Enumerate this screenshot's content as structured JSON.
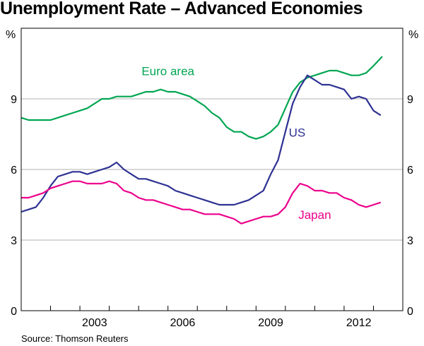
{
  "chart_data": {
    "type": "line",
    "title": "Unemployment Rate – Advanced Economies",
    "ylabel_left": "%",
    "ylabel_right": "%",
    "ylim": [
      0,
      12
    ],
    "yticks": [
      0,
      3,
      6,
      9
    ],
    "xlim": [
      2000.0,
      2013.0
    ],
    "xticks": [
      2003,
      2006,
      2009,
      2012
    ],
    "grid": true,
    "source": "Source: Thomson Reuters",
    "series": [
      {
        "name": "Euro area",
        "color": "#00a651",
        "points": [
          [
            2000.0,
            8.2
          ],
          [
            2000.25,
            8.1
          ],
          [
            2000.5,
            8.1
          ],
          [
            2000.75,
            8.1
          ],
          [
            2001.0,
            8.1
          ],
          [
            2001.25,
            8.2
          ],
          [
            2001.5,
            8.3
          ],
          [
            2001.75,
            8.4
          ],
          [
            2002.0,
            8.5
          ],
          [
            2002.25,
            8.6
          ],
          [
            2002.5,
            8.8
          ],
          [
            2002.75,
            9.0
          ],
          [
            2003.0,
            9.0
          ],
          [
            2003.25,
            9.1
          ],
          [
            2003.5,
            9.1
          ],
          [
            2003.75,
            9.1
          ],
          [
            2004.0,
            9.2
          ],
          [
            2004.25,
            9.3
          ],
          [
            2004.5,
            9.3
          ],
          [
            2004.75,
            9.4
          ],
          [
            2005.0,
            9.3
          ],
          [
            2005.25,
            9.3
          ],
          [
            2005.5,
            9.2
          ],
          [
            2005.75,
            9.1
          ],
          [
            2006.0,
            8.9
          ],
          [
            2006.25,
            8.7
          ],
          [
            2006.5,
            8.4
          ],
          [
            2006.75,
            8.2
          ],
          [
            2007.0,
            7.8
          ],
          [
            2007.25,
            7.6
          ],
          [
            2007.5,
            7.6
          ],
          [
            2007.75,
            7.4
          ],
          [
            2008.0,
            7.3
          ],
          [
            2008.25,
            7.4
          ],
          [
            2008.5,
            7.6
          ],
          [
            2008.75,
            7.9
          ],
          [
            2009.0,
            8.6
          ],
          [
            2009.25,
            9.3
          ],
          [
            2009.5,
            9.7
          ],
          [
            2009.75,
            9.9
          ],
          [
            2010.0,
            10.0
          ],
          [
            2010.25,
            10.1
          ],
          [
            2010.5,
            10.2
          ],
          [
            2010.75,
            10.2
          ],
          [
            2011.0,
            10.1
          ],
          [
            2011.25,
            10.0
          ],
          [
            2011.5,
            10.0
          ],
          [
            2011.75,
            10.1
          ],
          [
            2012.0,
            10.4
          ],
          [
            2012.3,
            10.8
          ]
        ]
      },
      {
        "name": "US",
        "color": "#2e3192",
        "points": [
          [
            2000.0,
            4.2
          ],
          [
            2000.25,
            4.3
          ],
          [
            2000.5,
            4.4
          ],
          [
            2000.75,
            4.8
          ],
          [
            2001.0,
            5.3
          ],
          [
            2001.25,
            5.7
          ],
          [
            2001.5,
            5.8
          ],
          [
            2001.75,
            5.9
          ],
          [
            2002.0,
            5.9
          ],
          [
            2002.25,
            5.8
          ],
          [
            2002.5,
            5.9
          ],
          [
            2002.75,
            6.0
          ],
          [
            2003.0,
            6.1
          ],
          [
            2003.25,
            6.3
          ],
          [
            2003.5,
            6.0
          ],
          [
            2003.75,
            5.8
          ],
          [
            2004.0,
            5.6
          ],
          [
            2004.25,
            5.6
          ],
          [
            2004.5,
            5.5
          ],
          [
            2004.75,
            5.4
          ],
          [
            2005.0,
            5.3
          ],
          [
            2005.25,
            5.1
          ],
          [
            2005.5,
            5.0
          ],
          [
            2005.75,
            4.9
          ],
          [
            2006.0,
            4.8
          ],
          [
            2006.25,
            4.7
          ],
          [
            2006.5,
            4.6
          ],
          [
            2006.75,
            4.5
          ],
          [
            2007.0,
            4.5
          ],
          [
            2007.25,
            4.5
          ],
          [
            2007.5,
            4.6
          ],
          [
            2007.75,
            4.7
          ],
          [
            2008.0,
            4.9
          ],
          [
            2008.25,
            5.1
          ],
          [
            2008.5,
            5.8
          ],
          [
            2008.75,
            6.4
          ],
          [
            2009.0,
            7.6
          ],
          [
            2009.25,
            8.8
          ],
          [
            2009.5,
            9.5
          ],
          [
            2009.75,
            10.0
          ],
          [
            2010.0,
            9.8
          ],
          [
            2010.25,
            9.6
          ],
          [
            2010.5,
            9.6
          ],
          [
            2010.75,
            9.5
          ],
          [
            2011.0,
            9.4
          ],
          [
            2011.25,
            9.0
          ],
          [
            2011.5,
            9.1
          ],
          [
            2011.75,
            9.0
          ],
          [
            2012.0,
            8.5
          ],
          [
            2012.25,
            8.3
          ]
        ]
      },
      {
        "name": "Japan",
        "color": "#ec008c",
        "points": [
          [
            2000.0,
            4.8
          ],
          [
            2000.25,
            4.8
          ],
          [
            2000.5,
            4.9
          ],
          [
            2000.75,
            5.0
          ],
          [
            2001.0,
            5.2
          ],
          [
            2001.25,
            5.3
          ],
          [
            2001.5,
            5.4
          ],
          [
            2001.75,
            5.5
          ],
          [
            2002.0,
            5.5
          ],
          [
            2002.25,
            5.4
          ],
          [
            2002.5,
            5.4
          ],
          [
            2002.75,
            5.4
          ],
          [
            2003.0,
            5.5
          ],
          [
            2003.25,
            5.4
          ],
          [
            2003.5,
            5.1
          ],
          [
            2003.75,
            5.0
          ],
          [
            2004.0,
            4.8
          ],
          [
            2004.25,
            4.7
          ],
          [
            2004.5,
            4.7
          ],
          [
            2004.75,
            4.6
          ],
          [
            2005.0,
            4.5
          ],
          [
            2005.25,
            4.4
          ],
          [
            2005.5,
            4.3
          ],
          [
            2005.75,
            4.3
          ],
          [
            2006.0,
            4.2
          ],
          [
            2006.25,
            4.1
          ],
          [
            2006.5,
            4.1
          ],
          [
            2006.75,
            4.1
          ],
          [
            2007.0,
            4.0
          ],
          [
            2007.25,
            3.9
          ],
          [
            2007.5,
            3.7
          ],
          [
            2007.75,
            3.8
          ],
          [
            2008.0,
            3.9
          ],
          [
            2008.25,
            4.0
          ],
          [
            2008.5,
            4.0
          ],
          [
            2008.75,
            4.1
          ],
          [
            2009.0,
            4.4
          ],
          [
            2009.25,
            5.0
          ],
          [
            2009.5,
            5.4
          ],
          [
            2009.75,
            5.3
          ],
          [
            2010.0,
            5.1
          ],
          [
            2010.25,
            5.1
          ],
          [
            2010.5,
            5.0
          ],
          [
            2010.75,
            5.0
          ],
          [
            2011.0,
            4.8
          ],
          [
            2011.25,
            4.7
          ],
          [
            2011.5,
            4.5
          ],
          [
            2011.75,
            4.4
          ],
          [
            2012.0,
            4.5
          ],
          [
            2012.25,
            4.6
          ]
        ]
      }
    ]
  }
}
